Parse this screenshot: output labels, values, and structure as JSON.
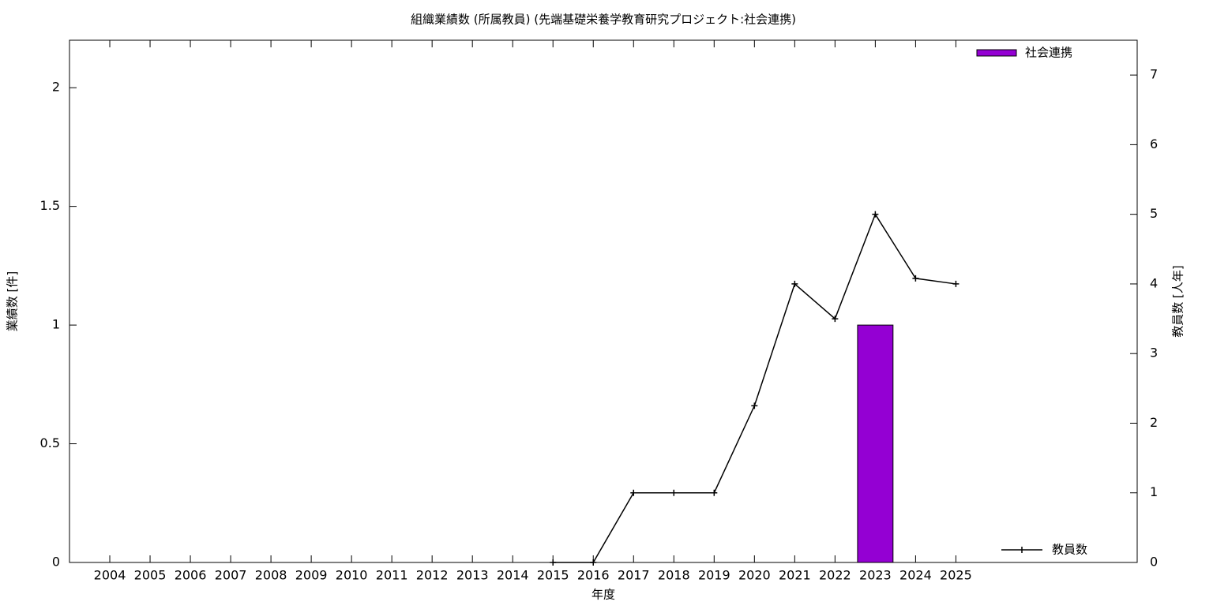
{
  "chart_data": {
    "type": "bar-line",
    "title": "組織業績数 (所属教員) (先端基礎栄養学教育研究プロジェクト:社会連携)",
    "x_label": "年度",
    "y_label": "業績数 [件]",
    "y2_label": "教員数 [人年]",
    "x": [
      2004,
      2005,
      2006,
      2007,
      2008,
      2009,
      2010,
      2011,
      2012,
      2013,
      2014,
      2015,
      2016,
      2017,
      2018,
      2019,
      2020,
      2021,
      2022,
      2023,
      2024,
      2025
    ],
    "xlim": [
      2003,
      2029.5
    ],
    "xticks": [
      2004,
      2005,
      2006,
      2007,
      2008,
      2009,
      2010,
      2011,
      2012,
      2013,
      2014,
      2015,
      2016,
      2017,
      2018,
      2019,
      2020,
      2021,
      2022,
      2023,
      2024,
      2025
    ],
    "ylim": [
      0,
      2.2
    ],
    "yticks": [
      0,
      0.5,
      1,
      1.5,
      2
    ],
    "y2lim": [
      0,
      7.5
    ],
    "y2ticks": [
      0,
      1,
      2,
      3,
      4,
      5,
      6,
      7
    ],
    "series": [
      {
        "name": "社会連携",
        "type": "bar",
        "color": "#9400d3",
        "values": [
          0,
          0,
          0,
          0,
          0,
          0,
          0,
          0,
          0,
          0,
          0,
          0,
          0,
          0,
          0,
          0,
          0,
          0,
          0,
          1,
          0,
          0
        ]
      },
      {
        "name": "教員数",
        "type": "line",
        "axis": "y2",
        "color": "#000000",
        "values": [
          null,
          null,
          null,
          null,
          null,
          null,
          null,
          null,
          null,
          null,
          null,
          0,
          0,
          1,
          1,
          1,
          2.25,
          4,
          3.5,
          5,
          4.08,
          4
        ]
      }
    ],
    "legend": {
      "bar": "top-right",
      "line": "bottom-right"
    }
  }
}
